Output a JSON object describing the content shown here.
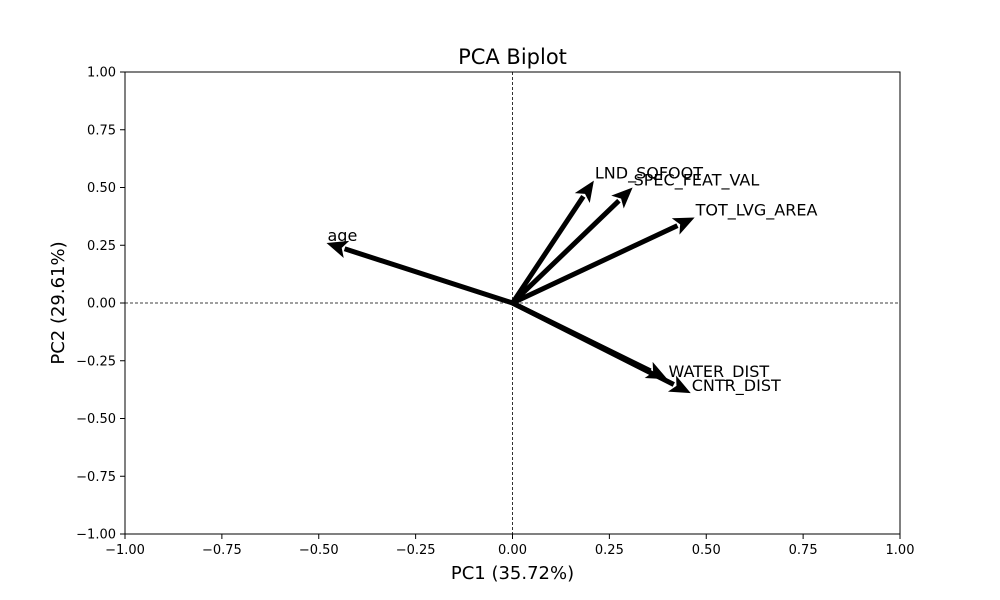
{
  "chart_data": {
    "type": "biplot",
    "title": "PCA Biplot",
    "xlabel": "PC1 (35.72%)",
    "ylabel": "PC2 (29.61%)",
    "xlim": [
      -1.0,
      1.0
    ],
    "ylim": [
      -1.0,
      1.0
    ],
    "xticks": [
      -1.0,
      -0.75,
      -0.5,
      -0.25,
      0.0,
      0.25,
      0.5,
      0.75,
      1.0
    ],
    "yticks": [
      -1.0,
      -0.75,
      -0.5,
      -0.25,
      0.0,
      0.25,
      0.5,
      0.75,
      1.0
    ],
    "xtick_labels": [
      "−1.00",
      "−0.75",
      "−0.50",
      "−0.25",
      "0.00",
      "0.25",
      "0.50",
      "0.75",
      "1.00"
    ],
    "ytick_labels": [
      "−1.00",
      "−0.75",
      "−0.50",
      "−0.25",
      "0.00",
      "0.25",
      "0.50",
      "0.75",
      "1.00"
    ],
    "reference_lines": {
      "x": 0.0,
      "y": 0.0,
      "style": "dashed"
    },
    "grid": false,
    "arrow_color": "#000000",
    "loadings": [
      {
        "name": "age",
        "x": -0.48,
        "y": 0.26
      },
      {
        "name": "LND_SQFOOT",
        "x": 0.21,
        "y": 0.53
      },
      {
        "name": "SPEC_FEAT_VAL",
        "x": 0.31,
        "y": 0.5
      },
      {
        "name": "TOT_LVG_AREA",
        "x": 0.47,
        "y": 0.37
      },
      {
        "name": "WATER_DIST",
        "x": 0.4,
        "y": -0.33
      },
      {
        "name": "CNTR_DIST",
        "x": 0.46,
        "y": -0.39
      }
    ]
  }
}
